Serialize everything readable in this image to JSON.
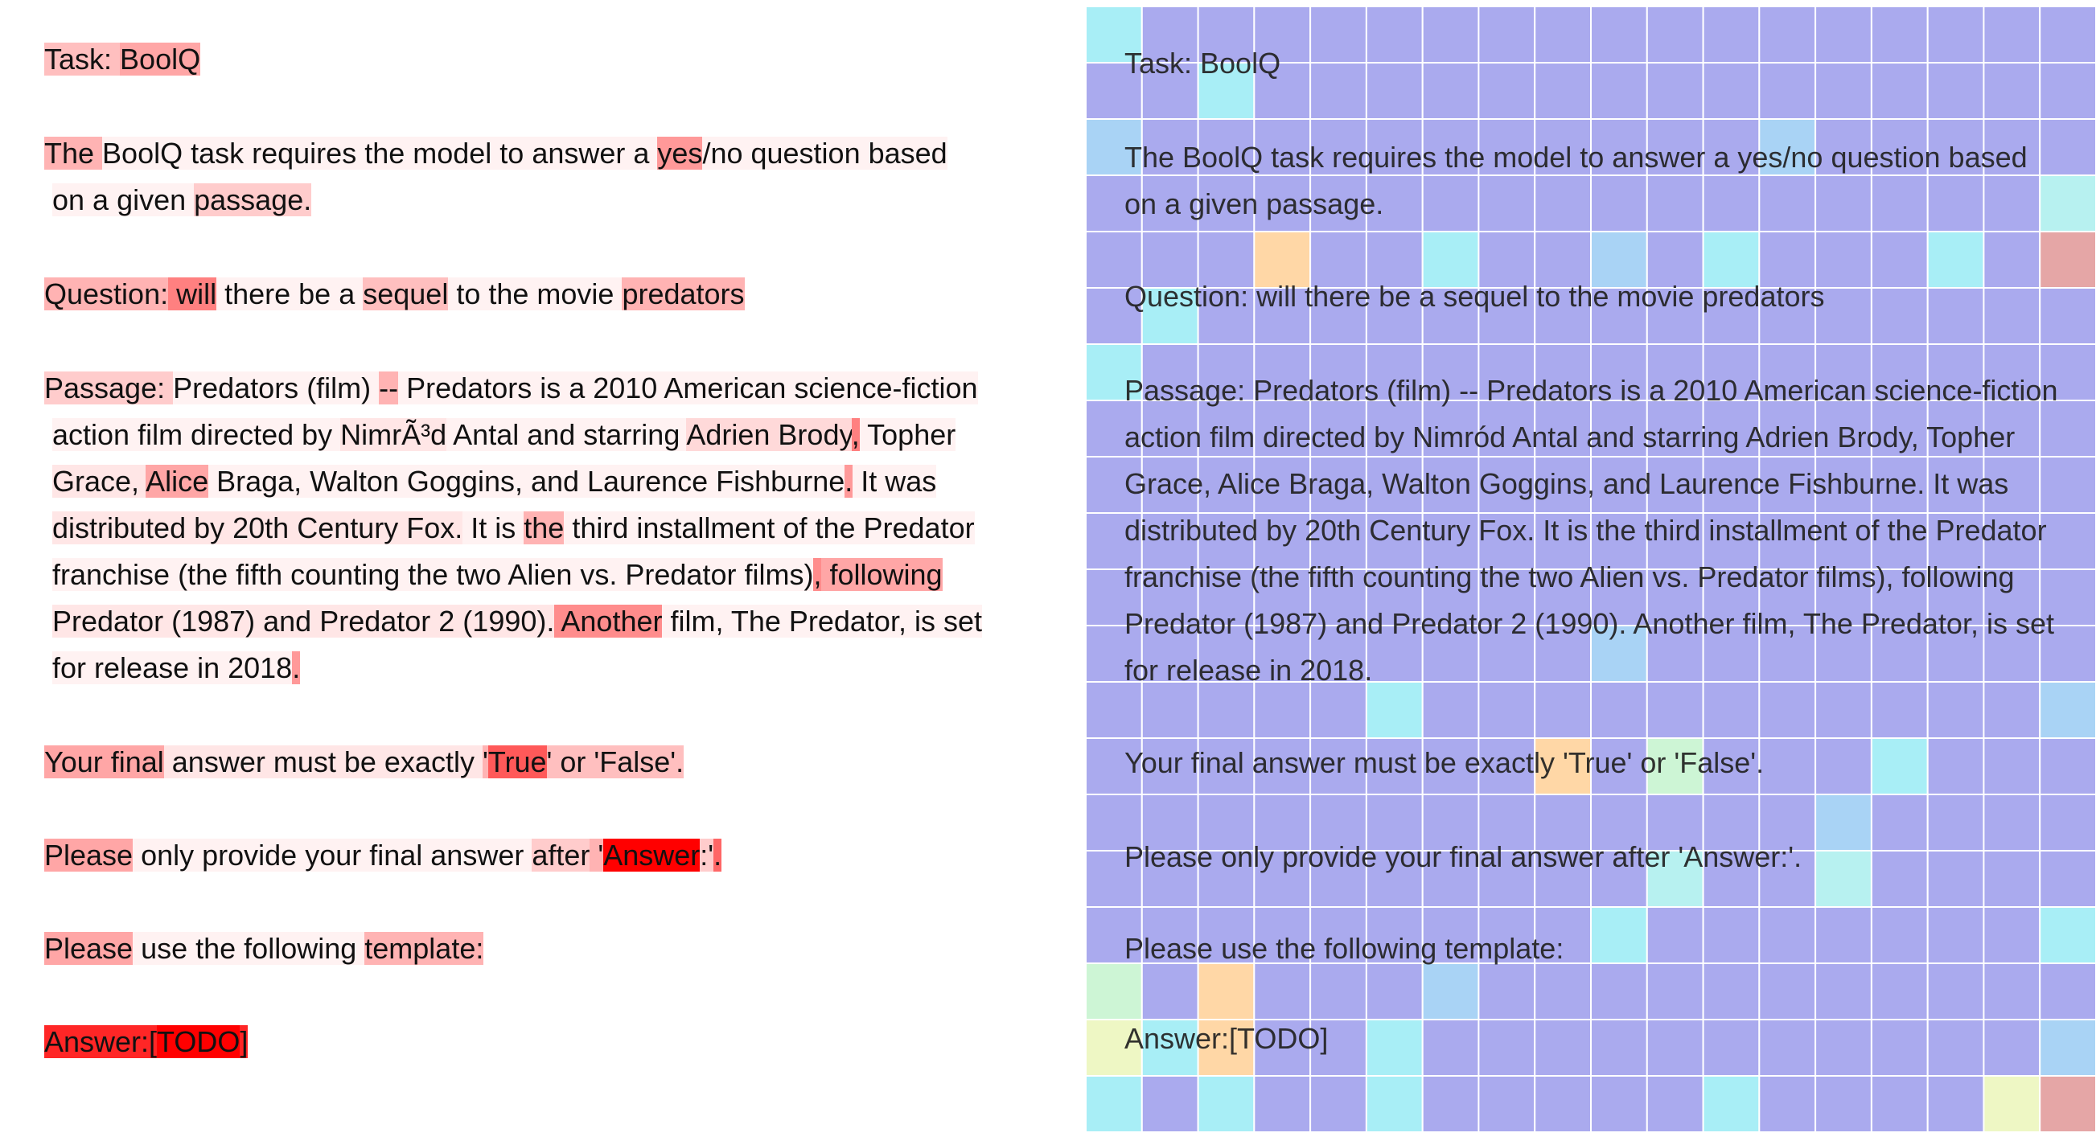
{
  "left_panel": {
    "lines": [
      {
        "tokens": [
          {
            "t": "Task: ",
            "w": 0.25
          },
          {
            "t": "BoolQ",
            "w": 0.35
          }
        ]
      },
      {
        "tokens": [
          {
            "t": "The ",
            "w": 0.3
          },
          {
            "t": "BoolQ task requires the model to answer a ",
            "w": 0.05
          },
          {
            "t": "yes",
            "w": 0.4
          },
          {
            "t": "/no question based",
            "w": 0.05
          }
        ]
      },
      {
        "tokens": [
          {
            "t": "on a given ",
            "w": 0.05
          },
          {
            "t": "passage.",
            "w": 0.2
          }
        ]
      },
      {
        "tokens": [
          {
            "t": "Question:",
            "w": 0.3
          },
          {
            "t": " will",
            "w": 0.5
          },
          {
            "t": " there be a ",
            "w": 0.05
          },
          {
            "t": "sequel",
            "w": 0.25
          },
          {
            "t": " to the movie ",
            "w": 0.05
          },
          {
            "t": "predators",
            "w": 0.3
          }
        ]
      },
      {
        "tokens": [
          {
            "t": "Passage: ",
            "w": 0.2
          },
          {
            "t": "Predators (film) ",
            "w": 0.05
          },
          {
            "t": "--",
            "w": 0.3
          },
          {
            "t": " Predators is a 2010 American science-fiction",
            "w": 0.05
          }
        ]
      },
      {
        "tokens": [
          {
            "t": "action film directed by ",
            "w": 0.05
          },
          {
            "t": "NimrÃ³d",
            "w": 0.1
          },
          {
            "t": " Antal and starring ",
            "w": 0.05
          },
          {
            "t": "Adrien Brody",
            "w": 0.15
          },
          {
            "t": ",",
            "w": 0.5
          },
          {
            "t": " Topher",
            "w": 0.05
          }
        ]
      },
      {
        "tokens": [
          {
            "t": "Grace, ",
            "w": 0.1
          },
          {
            "t": "Alice",
            "w": 0.35
          },
          {
            "t": " Braga, Walton Goggins, and Laurence Fishburne",
            "w": 0.05
          },
          {
            "t": ".",
            "w": 0.4
          },
          {
            "t": " It was",
            "w": 0.05
          }
        ]
      },
      {
        "tokens": [
          {
            "t": "distributed by 20th Century Fox.",
            "w": 0.1
          },
          {
            "t": " It is ",
            "w": 0.05
          },
          {
            "t": "the",
            "w": 0.3
          },
          {
            "t": " third installment of the Predator",
            "w": 0.05
          }
        ]
      },
      {
        "tokens": [
          {
            "t": "franchise (the fifth counting the two Alien vs. Predator films)",
            "w": 0.05
          },
          {
            "t": ",",
            "w": 0.45
          },
          {
            "t": " following",
            "w": 0.35
          }
        ]
      },
      {
        "tokens": [
          {
            "t": "Predator (1987) and Predator 2 (1990).",
            "w": 0.1
          },
          {
            "t": " Another",
            "w": 0.45
          },
          {
            "t": " film, The Predator, is set",
            "w": 0.05
          }
        ]
      },
      {
        "tokens": [
          {
            "t": "for release in 2018",
            "w": 0.05
          },
          {
            "t": ".",
            "w": 0.4
          }
        ]
      },
      {
        "tokens": [
          {
            "t": "Your final",
            "w": 0.35
          },
          {
            "t": " answer must be exactly ",
            "w": 0.1
          },
          {
            "t": "'",
            "w": 0.3
          },
          {
            "t": "True",
            "w": 0.65
          },
          {
            "t": "' or 'False'.",
            "w": 0.25
          }
        ]
      },
      {
        "tokens": [
          {
            "t": "Please",
            "w": 0.35
          },
          {
            "t": " only provide your final answer ",
            "w": 0.05
          },
          {
            "t": "after",
            "w": 0.2
          },
          {
            "t": " '",
            "w": 0.3
          },
          {
            "t": "Answer",
            "w": 1.0
          },
          {
            "t": ":'",
            "w": 0.2
          },
          {
            "t": ".",
            "w": 0.6
          }
        ]
      },
      {
        "tokens": [
          {
            "t": "Please",
            "w": 0.35
          },
          {
            "t": " use the following ",
            "w": 0.05
          },
          {
            "t": "template:",
            "w": 0.3
          }
        ]
      },
      {
        "tokens": [
          {
            "t": "Answer:[",
            "w": 0.85
          },
          {
            "t": "TODO",
            "w": 1.0
          },
          {
            "t": "]",
            "w": 0.85
          }
        ]
      }
    ]
  },
  "right_panel": {
    "lines": [
      "Task: BoolQ",
      "The BoolQ task requires the model to answer a yes/no question based",
      "on a given passage.",
      "Question: will there be a sequel to the movie predators",
      "Passage: Predators (film) -- Predators is a 2010 American science-fiction",
      "action film directed by Nimród Antal and starring Adrien Brody, Topher",
      "Grace, Alice Braga, Walton Goggins, and Laurence Fishburne. It was",
      "distributed by 20th Century Fox. It is the third installment of the Predator",
      "franchise (the fifth counting the two Alien vs. Predator films), following",
      "Predator (1987) and Predator 2 (1990). Another film, The Predator, is set",
      "for release in 2018.",
      "Your final answer must be exactly 'True' or 'False'.",
      "Please only provide your final answer after 'Answer:'.",
      "Please use the following template:",
      "Answer:[TODO]"
    ],
    "grid": {
      "rows": 20,
      "cols": 18,
      "cells": [
        "cbbbbbbbbbbbbbbbbb",
        "bbcbbbbbbbbbbbbbbb",
        "dbbbbbbbbbbbdbbbbb",
        "bbbbbbbbbbbbbbbbbt",
        "bbbobbcbbdbcbbbcbr",
        "bcbbbbbbbbbbbbbbbb",
        "cbbbbbbbbbbbbbbbbb",
        "bbbbbbbbbbbbbbbbbb",
        "bbbbbbbbbbbbbbbbbb",
        "bbbbbbbbbbbbbbbbbb",
        "bbbbbbbbbbbbbbbbbb",
        "bbbbbbbbbdbbbbbbbb",
        "bbbbbcbbbbbbbbbbbd",
        "bbbbbbbbobgbbbcbbb",
        "bbbbbbbbbbbbbdbbbb",
        "bbbbbbbbbbtbbtbbbb",
        "bbbbbbbbbcbbbbbbbc",
        "gbobbbdbbbbbbbbbbb",
        "ycobbcbbbbbbbbbbbd",
        "cbcbbcbbbbbcbbbbyr"
      ]
    }
  }
}
